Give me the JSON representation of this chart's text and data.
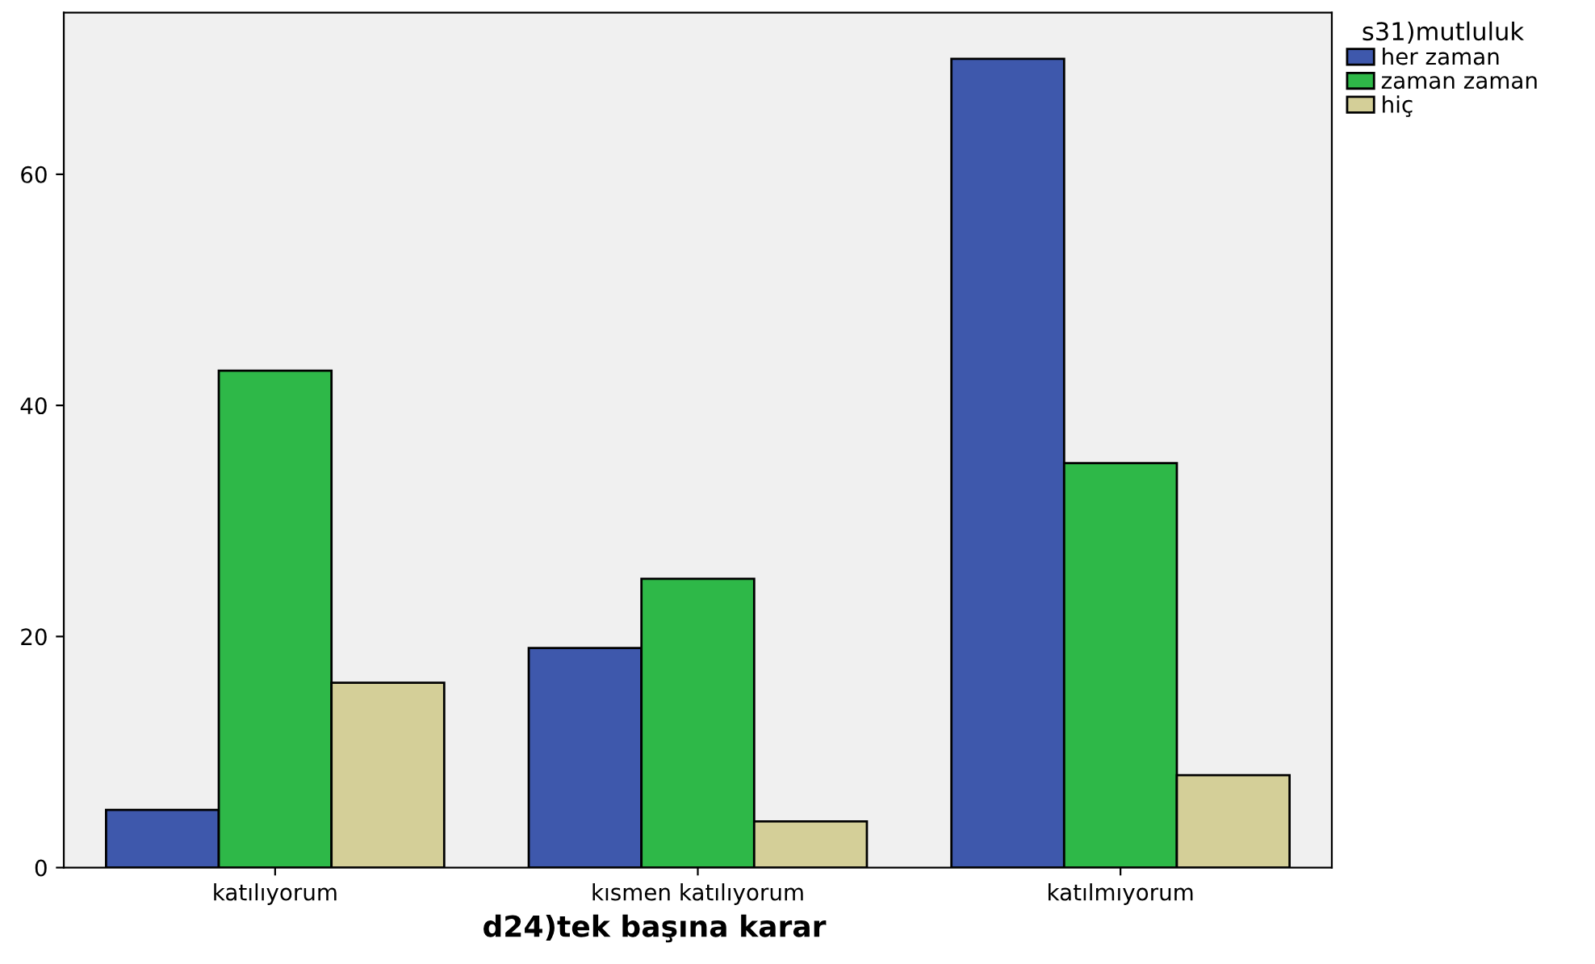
{
  "chart_data": {
    "type": "bar",
    "xlabel": "d24)tek başına karar",
    "legend_title": "s31)mutluluk",
    "categories": [
      "katılıyorum",
      "kısmen katılıyorum",
      "katılmıyorum"
    ],
    "series": [
      {
        "name": "her zaman",
        "color": "#3e58ac",
        "values": [
          5,
          19,
          70
        ]
      },
      {
        "name": "zaman zaman",
        "color": "#2eb848",
        "values": [
          43,
          25,
          35
        ]
      },
      {
        "name": "hiç",
        "color": "#d4cf98",
        "values": [
          16,
          4,
          8
        ]
      }
    ],
    "ylim": [
      0,
      74
    ],
    "yticks": [
      0,
      20,
      40,
      60
    ],
    "grid": false,
    "legend": "top right"
  }
}
